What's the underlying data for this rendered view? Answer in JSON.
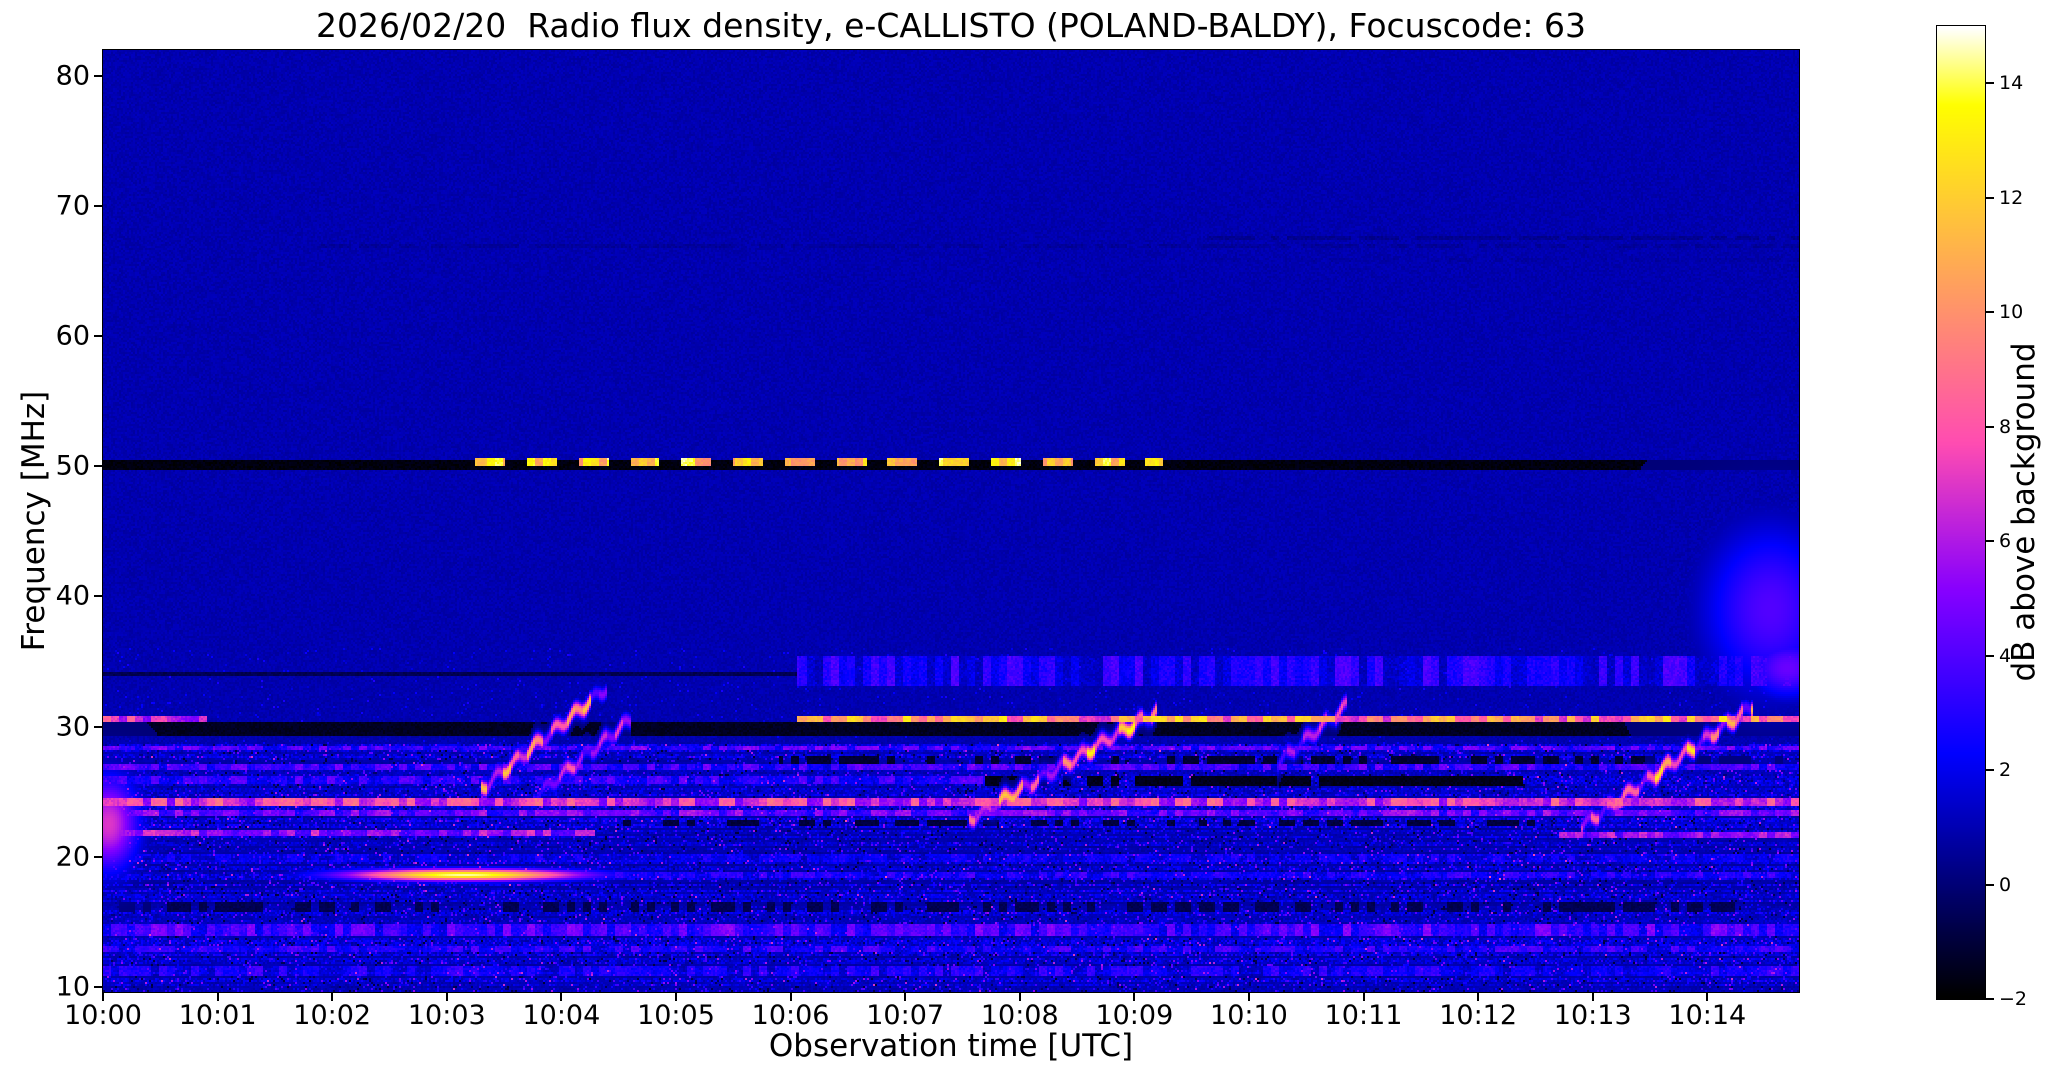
{
  "title": "2026/02/20  Radio flux density, e-CALLISTO (POLAND-BALDY), Focuscode: 63",
  "axes": {
    "xlabel": "Observation time [UTC]",
    "ylabel": "Frequency [MHz]",
    "x_ticks": [
      {
        "t": 0,
        "label": "10:00"
      },
      {
        "t": 1,
        "label": "10:01"
      },
      {
        "t": 2,
        "label": "10:02"
      },
      {
        "t": 3,
        "label": "10:03"
      },
      {
        "t": 4,
        "label": "10:04"
      },
      {
        "t": 5,
        "label": "10:05"
      },
      {
        "t": 6,
        "label": "10:06"
      },
      {
        "t": 7,
        "label": "10:07"
      },
      {
        "t": 8,
        "label": "10:08"
      },
      {
        "t": 9,
        "label": "10:09"
      },
      {
        "t": 10,
        "label": "10:10"
      },
      {
        "t": 11,
        "label": "10:11"
      },
      {
        "t": 12,
        "label": "10:12"
      },
      {
        "t": 13,
        "label": "10:13"
      },
      {
        "t": 14,
        "label": "10:14"
      }
    ],
    "y_ticks": [
      {
        "v": 80,
        "label": "80"
      },
      {
        "v": 70,
        "label": "70"
      },
      {
        "v": 60,
        "label": "60"
      },
      {
        "v": 50,
        "label": "50"
      },
      {
        "v": 40,
        "label": "40"
      },
      {
        "v": 30,
        "label": "30"
      },
      {
        "v": 20,
        "label": "20"
      },
      {
        "v": 10,
        "label": "10"
      }
    ]
  },
  "colorbar": {
    "label": "dB above background",
    "vmin": -2,
    "vmax": 15,
    "ticks": [
      {
        "v": 14,
        "label": "14"
      },
      {
        "v": 12,
        "label": "12"
      },
      {
        "v": 10,
        "label": "10"
      },
      {
        "v": 8,
        "label": "8"
      },
      {
        "v": 6,
        "label": "6"
      },
      {
        "v": 4,
        "label": "4"
      },
      {
        "v": 2,
        "label": "2"
      },
      {
        "v": 0,
        "label": "0"
      },
      {
        "v": -2,
        "label": "−2"
      }
    ]
  },
  "chart_data": {
    "type": "heatmap",
    "title": "2026/02/20  Radio flux density, e-CALLISTO (POLAND-BALDY), Focuscode: 63",
    "xlabel": "Observation time [UTC]",
    "ylabel": "Frequency [MHz]",
    "x_start": "10:00",
    "x_range_minutes": [
      0,
      14.8
    ],
    "x_tick_labels": [
      "10:00",
      "10:01",
      "10:02",
      "10:03",
      "10:04",
      "10:05",
      "10:06",
      "10:07",
      "10:08",
      "10:09",
      "10:10",
      "10:11",
      "10:12",
      "10:13",
      "10:14"
    ],
    "y_range_mhz": [
      9.6,
      82
    ],
    "y_tick_labels": [
      "80",
      "70",
      "60",
      "50",
      "40",
      "30",
      "20",
      "10"
    ],
    "value_range_db": [
      -2,
      15
    ],
    "colormap": "gnuplot2",
    "colorbar_label": "dB above background",
    "background_level_db": 1.0,
    "active_region_max_freq_mhz": 28.6,
    "features": {
      "bands": [
        {
          "f": 66.9,
          "h": 0.35,
          "t0": 1.8,
          "t1": 14.8,
          "v": 0.35,
          "cover": 0.7
        },
        {
          "f": 67.6,
          "h": 0.3,
          "t0": 9.6,
          "t1": 14.8,
          "v": 0.2,
          "cover": 0.8
        },
        {
          "f": 65.9,
          "h": 0.3,
          "t0": 9.6,
          "t1": 14.8,
          "v": 0.5,
          "cover": 0.6
        },
        {
          "f": 50.1,
          "h": 0.85,
          "t0": 0,
          "t1": 14.8,
          "v": -2
        },
        {
          "f": 50.35,
          "h": 0.5,
          "t0": 3.25,
          "t1": 9.25,
          "v": 12,
          "flicker": 0.3,
          "dash": [
            0.26,
            0.19
          ]
        },
        {
          "f": 34.0,
          "h": 0.35,
          "t0": 0,
          "t1": 6.05,
          "v": -0.9
        },
        {
          "f": 34.3,
          "h": 2.4,
          "t0": 6.05,
          "t1": 14.8,
          "v": 2.4,
          "flicker": 0.9
        },
        {
          "f": 29.8,
          "h": 1.1,
          "t0": 0,
          "t1": 14.8,
          "v": -1.7
        },
        {
          "f": 30.62,
          "h": 0.5,
          "t0": 6.05,
          "t1": 14.8,
          "v": 9.5,
          "flicker": 0.5
        },
        {
          "f": 30.62,
          "h": 0.45,
          "t0": 0,
          "t1": 0.9,
          "v": 7,
          "flicker": 0.6
        },
        {
          "f": 28.35,
          "h": 0.45,
          "t0": 0,
          "t1": 14.8,
          "v": 3.6,
          "flicker": 0.65
        },
        {
          "f": 27.3,
          "h": 0.9,
          "t0": 5.9,
          "t1": 14.8,
          "v": -1.4,
          "cover": 0.55
        },
        {
          "f": 26.9,
          "h": 0.4,
          "t0": 0,
          "t1": 14.8,
          "v": 3.2,
          "flicker": 0.7
        },
        {
          "f": 25.8,
          "h": 0.8,
          "t0": 7.7,
          "t1": 12.4,
          "v": -1.8,
          "cover": 0.85
        },
        {
          "f": 25.9,
          "h": 0.5,
          "t0": 0,
          "t1": 7.7,
          "v": 2.8,
          "flicker": 0.75
        },
        {
          "f": 24.15,
          "h": 0.65,
          "t0": 0,
          "t1": 14.8,
          "v": 6.8,
          "flicker": 0.45
        },
        {
          "f": 23.4,
          "h": 0.45,
          "t0": 0,
          "t1": 14.8,
          "v": 4.2,
          "flicker": 0.6
        },
        {
          "f": 22.6,
          "h": 0.5,
          "t0": 4.5,
          "t1": 12.6,
          "v": -1.2,
          "cover": 0.5
        },
        {
          "f": 21.8,
          "h": 0.5,
          "t0": 0,
          "t1": 4.3,
          "v": 5.2,
          "flicker": 0.5
        },
        {
          "f": 21.7,
          "h": 0.5,
          "t0": 12.7,
          "t1": 14.8,
          "v": 5,
          "flicker": 0.5
        },
        {
          "f": 19.9,
          "h": 0.6,
          "t0": 0,
          "t1": 14.8,
          "v": 1.8,
          "flicker": 0.8
        },
        {
          "f": 18.55,
          "h": 0.4,
          "t0": 4.4,
          "t1": 14.8,
          "v": 2.4,
          "flicker": 0.8
        },
        {
          "f": 16.1,
          "h": 0.7,
          "t0": 0,
          "t1": 14.8,
          "v": -0.9,
          "cover": 0.45
        },
        {
          "f": 14.4,
          "h": 0.9,
          "t0": 0,
          "t1": 14.8,
          "v": 3.4,
          "flicker": 0.7
        },
        {
          "f": 12.9,
          "h": 0.6,
          "t0": 0,
          "t1": 14.8,
          "v": 2.6,
          "flicker": 0.8
        },
        {
          "f": 11.2,
          "h": 0.8,
          "t0": 0,
          "t1": 14.8,
          "v": 2.2,
          "flicker": 0.85
        }
      ],
      "bursts": [
        {
          "t0": 3.3,
          "f0": 25.2,
          "t1": 4.4,
          "f1": 33.0,
          "v": 9
        },
        {
          "t0": 3.75,
          "f0": 24.5,
          "t1": 4.6,
          "f1": 30.5,
          "v": 5.5
        },
        {
          "t0": 7.55,
          "f0": 22.8,
          "t1": 9.2,
          "f1": 31.2,
          "v": 9
        },
        {
          "t0": 10.25,
          "f0": 27.2,
          "t1": 10.85,
          "f1": 31.6,
          "v": 5.5
        },
        {
          "t0": 12.9,
          "f0": 22.3,
          "t1": 14.4,
          "f1": 31.6,
          "v": 8.5
        }
      ],
      "blobs": [
        {
          "t": 3.15,
          "f": 18.6,
          "rt": 0.85,
          "rf": 0.38,
          "v": 14.5
        },
        {
          "t": 0.05,
          "f": 22.5,
          "rt": 0.22,
          "rf": 3,
          "v": 7
        },
        {
          "t": 14.55,
          "f": 39,
          "rt": 0.5,
          "rf": 5.5,
          "v": 4
        },
        {
          "t": 14.7,
          "f": 34.5,
          "rt": 0.3,
          "rf": 2,
          "v": 4.5
        }
      ]
    }
  }
}
